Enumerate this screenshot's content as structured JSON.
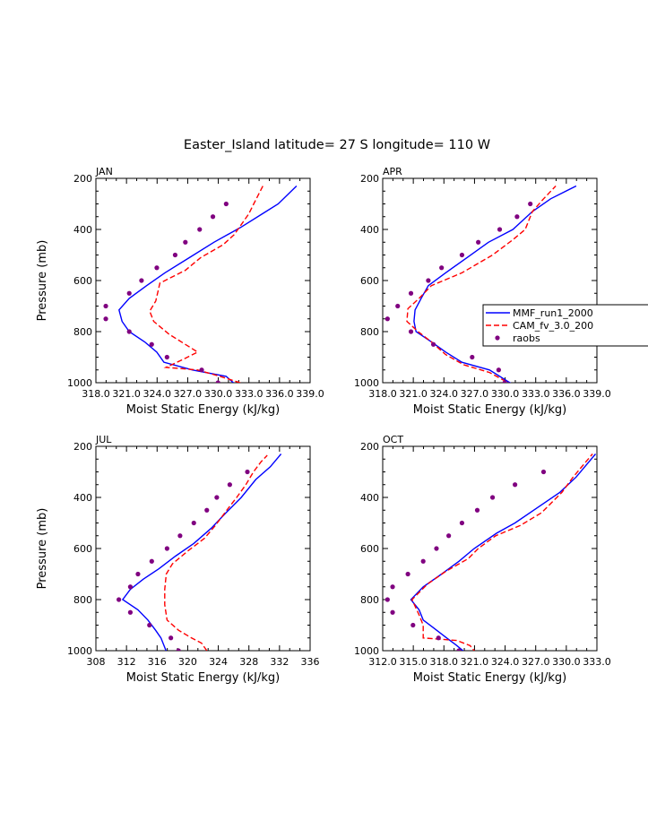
{
  "figure": {
    "title": "Easter_Island  latitude= 27 S longitude= 110 W"
  },
  "legend": {
    "placement": "right of APR panel",
    "entries": [
      {
        "label": "MMF_run1_2000",
        "color": "#0000ff",
        "style": "solid"
      },
      {
        "label": "CAM_fv_3.0_200",
        "color": "#ff0000",
        "style": "dashed"
      },
      {
        "label": "raobs",
        "color": "#800080",
        "style": "dot"
      }
    ]
  },
  "colors": {
    "mmf": "#0000ff",
    "cam": "#ff0000",
    "raobs": "#800080"
  },
  "chart_data": [
    {
      "type": "line",
      "panel": "JAN",
      "xlabel": "Moist Static Energy (kJ/kg)",
      "ylabel": "Pressure (mb)",
      "xlim": [
        318.03,
        339.03
      ],
      "ylim": [
        1000,
        200
      ],
      "xticks": [
        318.03,
        321.03,
        324.03,
        327.03,
        330.03,
        333.03,
        336.03,
        339.03
      ],
      "xticklabels": [
        "318.0",
        "321.0",
        "324.0",
        "327.0",
        "330.0",
        "333.0",
        "336.0",
        "339.0"
      ],
      "yticks": [
        200,
        400,
        600,
        800,
        1000
      ],
      "series": [
        {
          "name": "MMF_run1_2000",
          "points": [
            [
              331.8,
              1010
            ],
            [
              330.8,
              975
            ],
            [
              327.5,
              950
            ],
            [
              324.7,
              920
            ],
            [
              324.0,
              880
            ],
            [
              322.8,
              840
            ],
            [
              321.3,
              800
            ],
            [
              320.6,
              760
            ],
            [
              320.3,
              715
            ],
            [
              321.3,
              670
            ],
            [
              323.0,
              620
            ],
            [
              324.8,
              570
            ],
            [
              327.2,
              510
            ],
            [
              329.6,
              450
            ],
            [
              332.3,
              390
            ],
            [
              334.3,
              340
            ],
            [
              335.9,
              300
            ],
            [
              337.7,
              230
            ]
          ]
        },
        {
          "name": "CAM_fv_3.0_200",
          "points": [
            [
              333.7,
              1020
            ],
            [
              330.2,
              975
            ],
            [
              328.0,
              950
            ],
            [
              324.9,
              940
            ],
            [
              326.5,
              910
            ],
            [
              328.0,
              880
            ],
            [
              325.2,
              810
            ],
            [
              323.7,
              760
            ],
            [
              323.3,
              720
            ],
            [
              323.9,
              680
            ],
            [
              324.3,
              610
            ],
            [
              326.8,
              560
            ],
            [
              328.3,
              510
            ],
            [
              330.5,
              460
            ],
            [
              331.6,
              420
            ],
            [
              332.3,
              380
            ],
            [
              333.0,
              340
            ],
            [
              333.5,
              300
            ],
            [
              334.4,
              230
            ]
          ]
        },
        {
          "name": "raobs",
          "points": [
            [
              330.0,
              1000
            ],
            [
              328.4,
              950
            ],
            [
              325.0,
              900
            ],
            [
              323.5,
              850
            ],
            [
              321.3,
              800
            ],
            [
              319.0,
              750
            ],
            [
              319.0,
              700
            ],
            [
              321.3,
              650
            ],
            [
              322.5,
              600
            ],
            [
              324.0,
              550
            ],
            [
              325.8,
              500
            ],
            [
              326.8,
              450
            ],
            [
              328.2,
              400
            ],
            [
              329.5,
              350
            ],
            [
              330.8,
              300
            ]
          ]
        }
      ]
    },
    {
      "type": "line",
      "panel": "APR",
      "xlabel": "Moist Static Energy (kJ/kg)",
      "ylabel": "",
      "xlim": [
        318.03,
        339.03
      ],
      "ylim": [
        1000,
        200
      ],
      "xticks": [
        318.03,
        321.03,
        324.03,
        327.03,
        330.03,
        333.03,
        336.03,
        339.03
      ],
      "xticklabels": [
        "318.0",
        "321.0",
        "324.0",
        "327.0",
        "330.0",
        "333.0",
        "336.0",
        "339.0"
      ],
      "yticks": [
        200,
        400,
        600,
        800,
        1000
      ],
      "series": [
        {
          "name": "MMF_run1_2000",
          "points": [
            [
              330.9,
              1010
            ],
            [
              328.5,
              950
            ],
            [
              325.8,
              920
            ],
            [
              324.2,
              880
            ],
            [
              322.8,
              840
            ],
            [
              321.3,
              800
            ],
            [
              321.1,
              760
            ],
            [
              321.2,
              715
            ],
            [
              321.8,
              670
            ],
            [
              322.5,
              620
            ],
            [
              324.2,
              570
            ],
            [
              326.3,
              510
            ],
            [
              328.4,
              450
            ],
            [
              330.8,
              400
            ],
            [
              332.7,
              330
            ],
            [
              334.5,
              280
            ],
            [
              337.0,
              230
            ]
          ]
        },
        {
          "name": "CAM_fv_3.0_200",
          "points": [
            [
              330.8,
              1010
            ],
            [
              328.5,
              960
            ],
            [
              326.0,
              930
            ],
            [
              324.2,
              890
            ],
            [
              322.8,
              840
            ],
            [
              321.5,
              800
            ],
            [
              320.4,
              760
            ],
            [
              320.5,
              710
            ],
            [
              321.6,
              670
            ],
            [
              322.8,
              620
            ],
            [
              325.8,
              570
            ],
            [
              328.8,
              500
            ],
            [
              330.8,
              440
            ],
            [
              332.0,
              400
            ],
            [
              332.7,
              330
            ],
            [
              333.8,
              280
            ],
            [
              335.0,
              230
            ]
          ]
        },
        {
          "name": "raobs",
          "points": [
            [
              330.0,
              1000
            ],
            [
              329.4,
              950
            ],
            [
              326.8,
              900
            ],
            [
              323.0,
              850
            ],
            [
              320.8,
              800
            ],
            [
              318.5,
              750
            ],
            [
              319.5,
              700
            ],
            [
              320.8,
              650
            ],
            [
              322.5,
              600
            ],
            [
              323.8,
              550
            ],
            [
              325.8,
              500
            ],
            [
              327.4,
              450
            ],
            [
              329.5,
              400
            ],
            [
              331.2,
              350
            ],
            [
              332.5,
              300
            ]
          ]
        }
      ]
    },
    {
      "type": "line",
      "panel": "JUL",
      "xlabel": "Moist Static Energy (kJ/kg)",
      "ylabel": "Pressure (mb)",
      "xlim": [
        308,
        336
      ],
      "ylim": [
        1000,
        200
      ],
      "xticks": [
        308,
        312,
        316,
        320,
        324,
        328,
        332,
        336
      ],
      "xticklabels": [
        "308",
        "312",
        "316",
        "320",
        "324",
        "328",
        "332",
        "336"
      ],
      "yticks": [
        200,
        400,
        600,
        800,
        1000
      ],
      "series": [
        {
          "name": "MMF_run1_2000",
          "points": [
            [
              317.3,
              1010
            ],
            [
              316.5,
              950
            ],
            [
              315.8,
              920
            ],
            [
              314.8,
              880
            ],
            [
              313.5,
              840
            ],
            [
              311.5,
              800
            ],
            [
              312.5,
              760
            ],
            [
              314.2,
              720
            ],
            [
              316.2,
              680
            ],
            [
              318.4,
              630
            ],
            [
              320.8,
              580
            ],
            [
              323.1,
              520
            ],
            [
              325.0,
              460
            ],
            [
              327.0,
              400
            ],
            [
              328.9,
              330
            ],
            [
              330.8,
              280
            ],
            [
              332.2,
              230
            ]
          ]
        },
        {
          "name": "CAM_fv_3.0_200",
          "points": [
            [
              322.5,
              1000
            ],
            [
              321.8,
              970
            ],
            [
              320.5,
              950
            ],
            [
              318.8,
              920
            ],
            [
              317.3,
              880
            ],
            [
              317.0,
              820
            ],
            [
              317.0,
              760
            ],
            [
              317.2,
              700
            ],
            [
              318.0,
              660
            ],
            [
              320.0,
              610
            ],
            [
              322.2,
              560
            ],
            [
              323.6,
              510
            ],
            [
              325.1,
              450
            ],
            [
              326.4,
              400
            ],
            [
              327.6,
              350
            ],
            [
              328.6,
              300
            ],
            [
              329.6,
              260
            ],
            [
              330.4,
              235
            ]
          ]
        },
        {
          "name": "raobs",
          "points": [
            [
              318.8,
              1000
            ],
            [
              317.8,
              950
            ],
            [
              315.0,
              900
            ],
            [
              312.5,
              850
            ],
            [
              311.0,
              800
            ],
            [
              312.5,
              750
            ],
            [
              313.5,
              700
            ],
            [
              315.3,
              650
            ],
            [
              317.3,
              600
            ],
            [
              319.0,
              550
            ],
            [
              320.8,
              500
            ],
            [
              322.5,
              450
            ],
            [
              323.8,
              400
            ],
            [
              325.5,
              350
            ],
            [
              327.8,
              300
            ]
          ]
        }
      ]
    },
    {
      "type": "line",
      "panel": "OCT",
      "xlabel": "Moist Static Energy (kJ/kg)",
      "ylabel": "",
      "xlim": [
        312.03,
        333.03
      ],
      "ylim": [
        1000,
        200
      ],
      "xticks": [
        312.03,
        315.03,
        318.03,
        321.03,
        324.03,
        327.03,
        330.03,
        333.03
      ],
      "xticklabels": [
        "312.0",
        "315.0",
        "318.0",
        "321.0",
        "324.0",
        "327.0",
        "330.0",
        "333.0"
      ],
      "yticks": [
        200,
        400,
        600,
        800,
        1000
      ],
      "series": [
        {
          "name": "MMF_run1_2000",
          "points": [
            [
              320.2,
              1010
            ],
            [
              319.3,
              980
            ],
            [
              318.3,
              950
            ],
            [
              317.0,
              910
            ],
            [
              316.0,
              880
            ],
            [
              315.6,
              840
            ],
            [
              314.8,
              800
            ],
            [
              316.0,
              750
            ],
            [
              317.8,
              700
            ],
            [
              319.5,
              650
            ],
            [
              321.0,
              600
            ],
            [
              323.2,
              540
            ],
            [
              325.0,
              500
            ],
            [
              327.2,
              440
            ],
            [
              329.4,
              380
            ],
            [
              331.0,
              320
            ],
            [
              332.9,
              230
            ]
          ]
        },
        {
          "name": "CAM_fv_3.0_200",
          "points": [
            [
              321.2,
              1010
            ],
            [
              320.6,
              980
            ],
            [
              319.3,
              960
            ],
            [
              316.0,
              950
            ],
            [
              316.0,
              900
            ],
            [
              315.6,
              860
            ],
            [
              314.9,
              800
            ],
            [
              316.4,
              740
            ],
            [
              318.2,
              690
            ],
            [
              320.4,
              640
            ],
            [
              321.4,
              600
            ],
            [
              323.1,
              550
            ],
            [
              325.5,
              510
            ],
            [
              327.6,
              460
            ],
            [
              329.6,
              380
            ],
            [
              330.7,
              320
            ],
            [
              332.6,
              230
            ]
          ]
        },
        {
          "name": "raobs",
          "points": [
            [
              319.5,
              1000
            ],
            [
              317.5,
              950
            ],
            [
              315.0,
              900
            ],
            [
              313.0,
              850
            ],
            [
              312.5,
              800
            ],
            [
              313.0,
              750
            ],
            [
              314.5,
              700
            ],
            [
              316.0,
              650
            ],
            [
              317.3,
              600
            ],
            [
              318.5,
              550
            ],
            [
              319.8,
              500
            ],
            [
              321.3,
              450
            ],
            [
              322.8,
              400
            ],
            [
              325.0,
              350
            ],
            [
              327.8,
              300
            ]
          ]
        }
      ]
    }
  ]
}
